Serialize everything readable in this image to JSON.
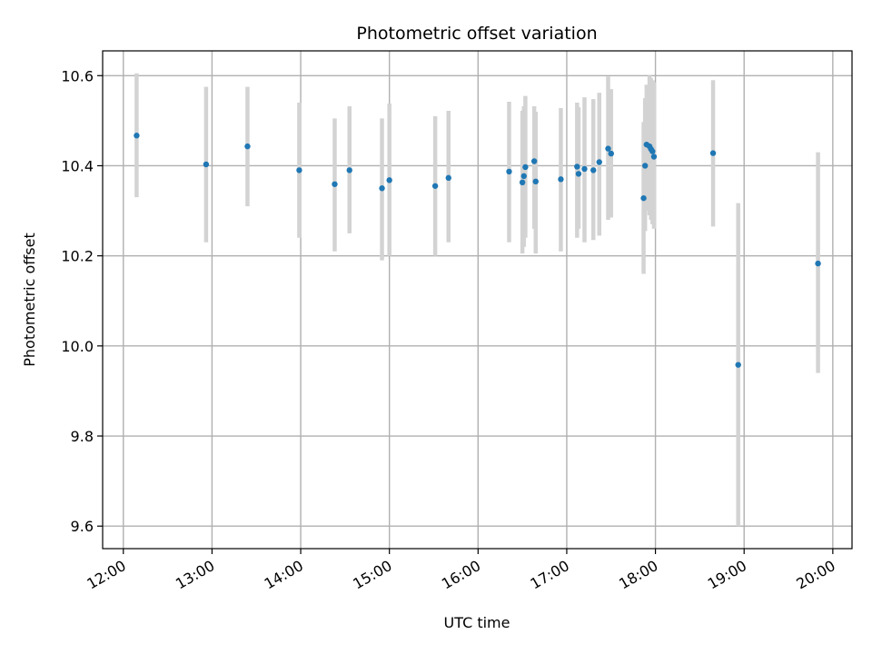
{
  "chart_data": {
    "type": "scatter",
    "title": "Photometric offset variation",
    "xlabel": "UTC time",
    "ylabel": "Photometric offset",
    "xlim": [
      "11:46",
      "20:13"
    ],
    "ylim": [
      9.55,
      10.655
    ],
    "x_ticks": [
      "12:00",
      "13:00",
      "14:00",
      "15:00",
      "16:00",
      "17:00",
      "18:00",
      "19:00",
      "20:00"
    ],
    "y_ticks": [
      9.6,
      9.8,
      10.0,
      10.2,
      10.4,
      10.6
    ],
    "y_tick_labels": [
      "9.6",
      "9.8",
      "10.0",
      "10.2",
      "10.4",
      "10.6"
    ],
    "grid": true,
    "colors": {
      "marker": "#1f77b4",
      "errorbar": "#d3d3d3"
    },
    "series": [
      {
        "points": [
          {
            "x": "12:09",
            "y": 10.467,
            "lo": 10.33,
            "hi": 10.605
          },
          {
            "x": "12:56",
            "y": 10.403,
            "lo": 10.23,
            "hi": 10.575
          },
          {
            "x": "13:24",
            "y": 10.443,
            "lo": 10.31,
            "hi": 10.575
          },
          {
            "x": "13:59",
            "y": 10.39,
            "lo": 10.24,
            "hi": 10.54
          },
          {
            "x": "14:23",
            "y": 10.359,
            "lo": 10.21,
            "hi": 10.505
          },
          {
            "x": "14:33",
            "y": 10.39,
            "lo": 10.25,
            "hi": 10.532
          },
          {
            "x": "14:55",
            "y": 10.35,
            "lo": 10.19,
            "hi": 10.505
          },
          {
            "x": "15:00",
            "y": 10.368,
            "lo": 10.2,
            "hi": 10.538
          },
          {
            "x": "15:31",
            "y": 10.355,
            "lo": 10.2,
            "hi": 10.51
          },
          {
            "x": "15:40",
            "y": 10.373,
            "lo": 10.23,
            "hi": 10.522
          },
          {
            "x": "16:21",
            "y": 10.387,
            "lo": 10.23,
            "hi": 10.542
          },
          {
            "x": "16:30",
            "y": 10.363,
            "lo": 10.205,
            "hi": 10.522
          },
          {
            "x": "16:31",
            "y": 10.377,
            "lo": 10.22,
            "hi": 10.532
          },
          {
            "x": "16:32",
            "y": 10.397,
            "lo": 10.24,
            "hi": 10.555
          },
          {
            "x": "16:38",
            "y": 10.41,
            "lo": 10.26,
            "hi": 10.532
          },
          {
            "x": "16:39",
            "y": 10.365,
            "lo": 10.205,
            "hi": 10.52
          },
          {
            "x": "16:56",
            "y": 10.37,
            "lo": 10.21,
            "hi": 10.528
          },
          {
            "x": "17:07",
            "y": 10.398,
            "lo": 10.24,
            "hi": 10.54
          },
          {
            "x": "17:08",
            "y": 10.382,
            "lo": 10.26,
            "hi": 10.53
          },
          {
            "x": "17:12",
            "y": 10.393,
            "lo": 10.23,
            "hi": 10.552
          },
          {
            "x": "17:18",
            "y": 10.39,
            "lo": 10.235,
            "hi": 10.548
          },
          {
            "x": "17:22",
            "y": 10.408,
            "lo": 10.245,
            "hi": 10.562
          },
          {
            "x": "17:28",
            "y": 10.438,
            "lo": 10.28,
            "hi": 10.598
          },
          {
            "x": "17:30",
            "y": 10.427,
            "lo": 10.285,
            "hi": 10.57
          },
          {
            "x": "17:52",
            "y": 10.328,
            "lo": 10.16,
            "hi": 10.497
          },
          {
            "x": "17:53",
            "y": 10.4,
            "lo": 10.255,
            "hi": 10.55
          },
          {
            "x": "17:54",
            "y": 10.447,
            "lo": 10.3,
            "hi": 10.58
          },
          {
            "x": "17:56",
            "y": 10.443,
            "lo": 10.29,
            "hi": 10.6
          },
          {
            "x": "17:57",
            "y": 10.437,
            "lo": 10.28,
            "hi": 10.595
          },
          {
            "x": "17:58",
            "y": 10.432,
            "lo": 10.27,
            "hi": 10.59
          },
          {
            "x": "17:59",
            "y": 10.42,
            "lo": 10.26,
            "hi": 10.585
          },
          {
            "x": "18:39",
            "y": 10.428,
            "lo": 10.265,
            "hi": 10.59
          },
          {
            "x": "18:56",
            "y": 9.958,
            "lo": 9.6,
            "hi": 10.317
          },
          {
            "x": "19:50",
            "y": 10.183,
            "lo": 9.94,
            "hi": 10.43
          }
        ]
      }
    ]
  }
}
